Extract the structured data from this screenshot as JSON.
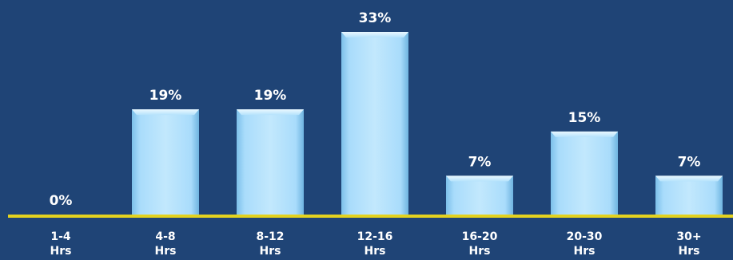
{
  "chart_data": {
    "type": "bar",
    "categories": [
      [
        "1-4",
        "Hrs"
      ],
      [
        "4-8",
        "Hrs"
      ],
      [
        "8-12",
        "Hrs"
      ],
      [
        "12-16",
        "Hrs"
      ],
      [
        "16-20",
        "Hrs"
      ],
      [
        "20-30",
        "Hrs"
      ],
      [
        "30+",
        "Hrs"
      ]
    ],
    "values": [
      0,
      19,
      19,
      33,
      7,
      15,
      7
    ],
    "value_labels": [
      "0%",
      "19%",
      "19%",
      "33%",
      "7%",
      "15%",
      "7%"
    ],
    "ylim": [
      0,
      33
    ],
    "grid": false,
    "legend": "none",
    "colors": {
      "background": "#1f4476",
      "bar_fill": "#a9dcfb",
      "bar_highlight": "#eaf8ff",
      "bar_shadow": "#6fb4e0",
      "baseline": "#e3d21f",
      "text": "#ffffff"
    }
  }
}
